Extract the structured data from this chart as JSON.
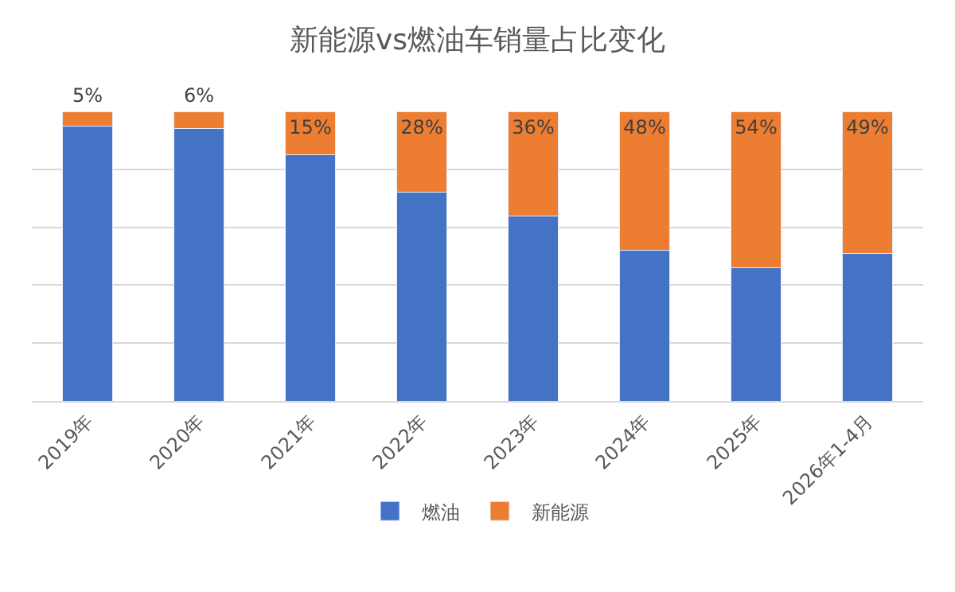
{
  "chart_data": {
    "type": "bar",
    "title": "新能源vs燃油车销量占比变化",
    "stacked": true,
    "categories": [
      "2019年",
      "2020年",
      "2021年",
      "2022年",
      "2023年",
      "2024年",
      "2025年",
      "2026年1-4月"
    ],
    "series": [
      {
        "name": "燃油",
        "color": "#4472c4",
        "values": [
          95,
          94,
          85,
          72,
          64,
          52,
          46,
          51
        ]
      },
      {
        "name": "新能源",
        "color": "#ed7d31",
        "values": [
          5,
          6,
          15,
          28,
          36,
          48,
          54,
          49
        ],
        "value_labels": [
          "5%",
          "6%",
          "15%",
          "28%",
          "36%",
          "48%",
          "54%",
          "49%"
        ]
      }
    ],
    "ylim": [
      0,
      100
    ],
    "yticks": [
      {
        "value": 0,
        "label": null
      },
      {
        "value": 20,
        "label": null
      },
      {
        "value": 40,
        "label": null
      },
      {
        "value": 60,
        "label": null
      },
      {
        "value": 80,
        "label": null
      }
    ],
    "tick_labels": "x",
    "grid": "y",
    "legend": "bottom"
  }
}
